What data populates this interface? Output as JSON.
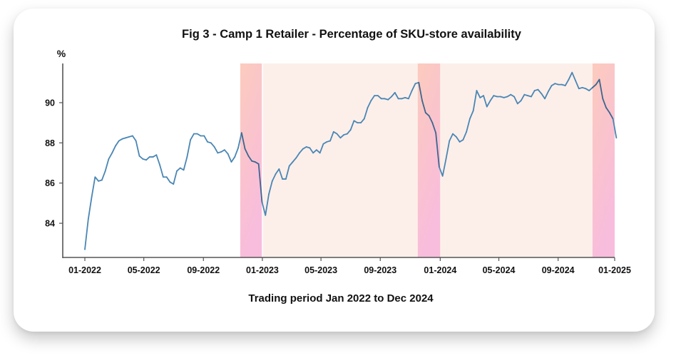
{
  "chart_data": {
    "type": "line",
    "title": "Fig 3 - Camp 1 Retailer - Percentage of SKU-store availability",
    "xlabel": "Trading period Jan 2022 to Dec 2024",
    "ylabel": "%",
    "ylim": [
      82.3,
      91.95
    ],
    "yticks": [
      84,
      86,
      88,
      90
    ],
    "ytick_labels": [
      "84",
      "86",
      "88",
      "90"
    ],
    "xlim_weeks": [
      -2.5,
      155.5
    ],
    "xticks": [
      {
        "label": "01-2022",
        "week": 0
      },
      {
        "label": "05-2022",
        "week": 17.3
      },
      {
        "label": "09-2022",
        "week": 34.8
      },
      {
        "label": "01-2023",
        "week": 52.1
      },
      {
        "label": "05-2023",
        "week": 69.3
      },
      {
        "label": "09-2023",
        "week": 86.7
      },
      {
        "label": "01-2024",
        "week": 104.3
      },
      {
        "label": "05-2024",
        "week": 121.5
      },
      {
        "label": "09-2024",
        "week": 138.9
      },
      {
        "label": "01-2025",
        "week": 155.5
      }
    ],
    "grid": false,
    "legend": "none",
    "shaded_periods": [
      {
        "start_week": 45.6,
        "end_week": 52.1,
        "kind": "campaign"
      },
      {
        "start_week": 52.1,
        "end_week": 97.7,
        "kind": "between"
      },
      {
        "start_week": 97.7,
        "end_week": 104.3,
        "kind": "campaign"
      },
      {
        "start_week": 104.3,
        "end_week": 149.0,
        "kind": "between"
      },
      {
        "start_week": 149.0,
        "end_week": 155.5,
        "kind": "campaign"
      }
    ],
    "series": [
      {
        "name": "SKU-store availability",
        "color": "#4a86b4",
        "color_campaign": "#3c6690",
        "values": [
          82.7,
          84.2,
          85.3,
          86.3,
          86.1,
          86.15,
          86.6,
          87.2,
          87.5,
          87.85,
          88.1,
          88.2,
          88.25,
          88.3,
          88.35,
          88.1,
          87.35,
          87.2,
          87.15,
          87.3,
          87.3,
          87.4,
          86.9,
          86.3,
          86.3,
          86.05,
          85.95,
          86.6,
          86.75,
          86.65,
          87.3,
          88.15,
          88.45,
          88.45,
          88.35,
          88.35,
          88.05,
          88.0,
          87.8,
          87.5,
          87.55,
          87.65,
          87.45,
          87.05,
          87.3,
          87.75,
          88.5,
          87.7,
          87.35,
          87.1,
          87.05,
          86.95,
          85.05,
          84.4,
          85.45,
          86.1,
          86.45,
          86.7,
          86.2,
          86.2,
          86.85,
          87.05,
          87.25,
          87.5,
          87.7,
          87.8,
          87.75,
          87.5,
          87.65,
          87.5,
          87.95,
          88.05,
          88.1,
          88.55,
          88.45,
          88.25,
          88.4,
          88.45,
          88.65,
          89.1,
          89.0,
          89.0,
          89.2,
          89.75,
          90.1,
          90.35,
          90.35,
          90.2,
          90.2,
          90.15,
          90.3,
          90.5,
          90.2,
          90.2,
          90.25,
          90.2,
          90.6,
          90.95,
          91.0,
          90.1,
          89.5,
          89.35,
          89.0,
          88.5,
          86.8,
          86.35,
          87.2,
          88.1,
          88.45,
          88.3,
          88.05,
          88.15,
          88.55,
          89.2,
          89.6,
          90.6,
          90.25,
          90.35,
          89.8,
          90.1,
          90.35,
          90.3,
          90.3,
          90.25,
          90.3,
          90.4,
          90.3,
          89.95,
          90.1,
          90.4,
          90.35,
          90.3,
          90.6,
          90.65,
          90.45,
          90.2,
          90.55,
          90.85,
          90.95,
          90.9,
          90.9,
          90.85,
          91.15,
          91.5,
          91.1,
          90.7,
          90.75,
          90.7,
          90.6,
          90.75,
          90.9,
          91.15,
          90.2,
          89.75,
          89.5,
          89.2,
          88.25
        ]
      }
    ]
  },
  "colors": {
    "campaign_top": "#fccbbd",
    "campaign_bottom": "#f8bcdd",
    "between": "#fcefea",
    "axis": "#555555",
    "text": "#111111"
  }
}
